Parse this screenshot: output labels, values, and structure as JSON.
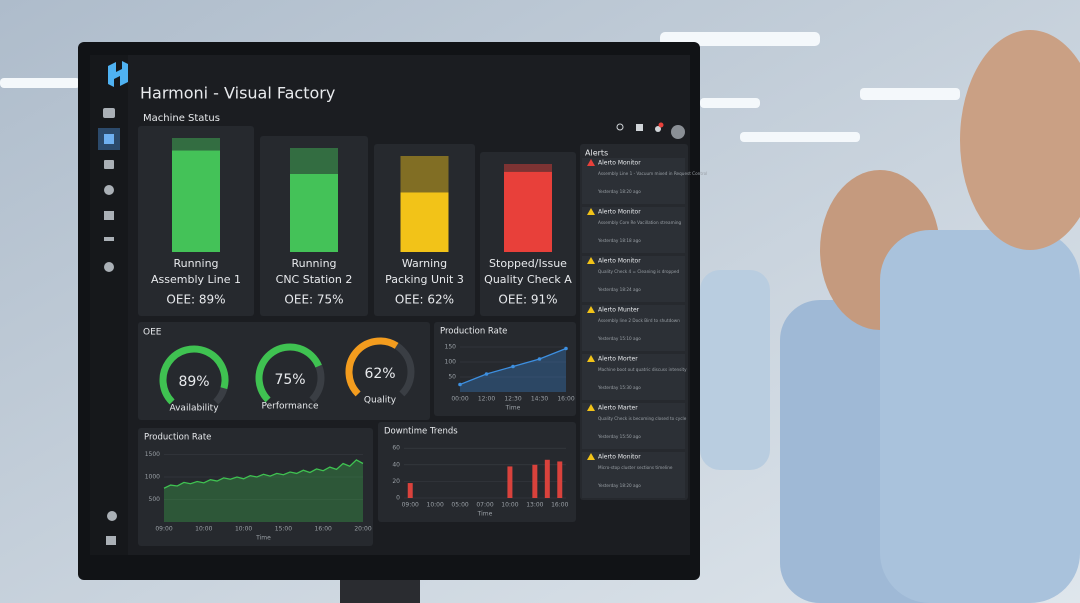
{
  "app": {
    "title": "Harmoni - Visual Factory"
  },
  "machine_status": {
    "title": "Machine Status",
    "machines": [
      {
        "status": "Running",
        "name": "Assembly Line 1",
        "oee": 89,
        "oee_label": "OEE: 89%",
        "color": "#44c258"
      },
      {
        "status": "Running",
        "name": "CNC Station 2",
        "oee": 75,
        "oee_label": "OEE: 75%",
        "color": "#44c258"
      },
      {
        "status": "Warning",
        "name": "Packing Unit 3",
        "oee": 62,
        "oee_label": "OEE: 62%",
        "color": "#f2c318"
      },
      {
        "status": "Stopped/Issue",
        "name": "Quality Check A",
        "oee": 91,
        "oee_label": "OEE: 91%",
        "color": "#e8403a"
      }
    ]
  },
  "oee": {
    "title": "OEE",
    "gauges": [
      {
        "value": 89,
        "value_label": "89%",
        "label": "Availability",
        "color": "#3fc251"
      },
      {
        "value": 75,
        "value_label": "75%",
        "label": "Performance",
        "color": "#3fc251"
      },
      {
        "value": 62,
        "value_label": "62%",
        "label": "Quality",
        "color": "#f39c1e"
      }
    ]
  },
  "chart_data": [
    {
      "type": "line",
      "title": "Production Rate",
      "xlabel": "Time",
      "color": "#3d8fe0",
      "markers": true,
      "categories": [
        "00:00",
        "12:00",
        "12:30",
        "14:30",
        "16:00"
      ],
      "values": [
        25,
        60,
        85,
        110,
        145
      ],
      "ylim": [
        0,
        160
      ],
      "yticks": [
        50,
        100,
        150
      ],
      "grid": true
    },
    {
      "type": "line",
      "title": "Production Rate",
      "xlabel": "Time",
      "color": "#3fc251",
      "markers": false,
      "categories": [
        "09:00",
        null,
        null,
        null,
        null,
        null,
        "10:00",
        null,
        null,
        null,
        null,
        null,
        "10:00",
        null,
        null,
        null,
        null,
        null,
        "15:00",
        null,
        null,
        null,
        null,
        null,
        "16:00",
        null,
        null,
        null,
        null,
        null,
        "20:00"
      ],
      "values": [
        750,
        820,
        800,
        880,
        850,
        900,
        870,
        940,
        910,
        980,
        950,
        1000,
        960,
        1030,
        1000,
        1060,
        1020,
        1080,
        1050,
        1110,
        1080,
        1150,
        1100,
        1180,
        1140,
        1220,
        1170,
        1300,
        1240,
        1380,
        1300
      ],
      "ylim": [
        0,
        1600
      ],
      "yticks": [
        500,
        1000,
        1500
      ],
      "grid": true
    },
    {
      "type": "bar",
      "title": "Downtime Trends",
      "xlabel": "Time",
      "color": "#d9423c",
      "categories": [
        "09:00",
        null,
        "10:00",
        null,
        "05:00",
        null,
        "07:00",
        null,
        "10:00",
        null,
        "13:00",
        null,
        "16:00"
      ],
      "values": [
        18,
        0,
        0,
        0,
        0,
        0,
        0,
        0,
        38,
        0,
        40,
        46,
        44
      ],
      "ylim": [
        0,
        65
      ],
      "yticks": [
        0,
        20,
        40,
        60
      ],
      "grid": true
    }
  ],
  "alerts": {
    "title": "Alerts",
    "items": [
      {
        "title": "Alerto Monitor",
        "text": "Assembly Line 1 - Vacuum mixed in Request Control",
        "time": "Yesterday 18:20 ago"
      },
      {
        "title": "Alerto Monitor",
        "text": "Assembly Core Re Vacillation streaming",
        "time": "Yesterday 18:18 ago"
      },
      {
        "title": "Alerto Monitor",
        "text": "Quality Check 4 = Cleaning is dropped",
        "time": "Yesterday 18:24 ago"
      },
      {
        "title": "Alerto Munter",
        "text": "Assembly line 2 Dock Bird to shutdown",
        "time": "Yesterday 15:10 ago"
      },
      {
        "title": "Alerto Morter",
        "text": "Machine boot out quatric discuss intensity",
        "time": "Yesterday 15:30 ago"
      },
      {
        "title": "Alerto Marter",
        "text": "Quality Check is becoming closed to cycle",
        "time": "Yesterday 15:50 ago"
      },
      {
        "title": "Alerto Monitor",
        "text": "Micro-stop cluster sections timeline",
        "time": "Yesterday 18:20 ago"
      }
    ]
  }
}
